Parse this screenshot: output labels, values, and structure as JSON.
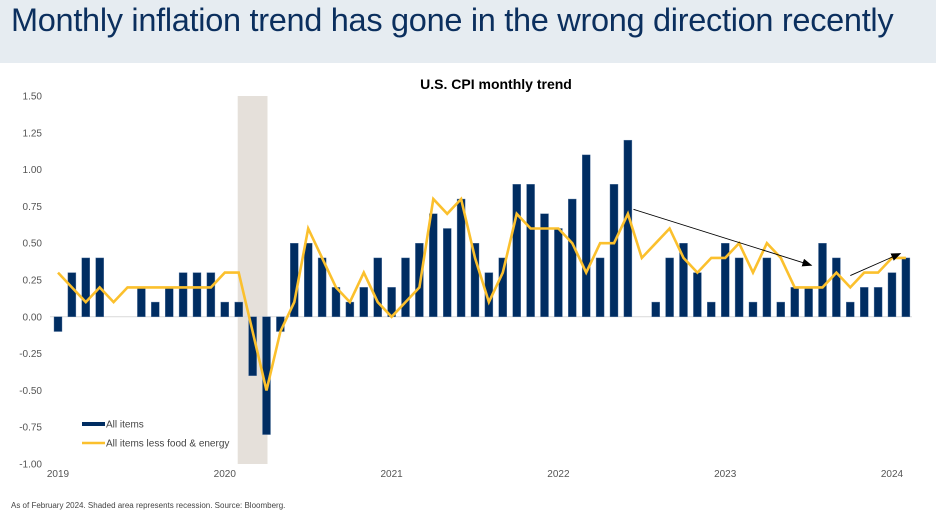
{
  "header": {
    "title": "Monthly inflation trend has gone in the wrong direction recently"
  },
  "footnote": "As of February 2024. Shaded area represents recession. Source: Bloomberg.",
  "colors": {
    "header_bg": "#e6ecf1",
    "title": "#0b2f5e",
    "all_items": "#002d62",
    "core": "#fbc02d",
    "recession": "#e5e0da",
    "arrow": "#000000"
  },
  "chart_data": {
    "type": "bar+line",
    "title": "U.S. CPI monthly trend",
    "xlabel": "",
    "ylabel": "",
    "ylim": [
      -1.0,
      1.5
    ],
    "yticks": [
      -1.0,
      -0.75,
      -0.5,
      -0.25,
      0.0,
      0.25,
      0.5,
      0.75,
      1.0,
      1.25,
      1.5
    ],
    "ytick_labels": [
      "-1.00",
      "-0.75",
      "-0.50",
      "-0.25",
      "0.00",
      "0.25",
      "0.50",
      "0.75",
      "1.00",
      "1.25",
      "1.50"
    ],
    "grid": false,
    "x_start": "Jan 2019",
    "x_end": "Feb 2024",
    "xtick_labels": [
      {
        "label": "2019",
        "month_index": 0
      },
      {
        "label": "2020",
        "month_index": 12
      },
      {
        "label": "2021",
        "month_index": 24
      },
      {
        "label": "2022",
        "month_index": 36
      },
      {
        "label": "2023",
        "month_index": 48
      },
      {
        "label": "2024",
        "month_index": 60
      }
    ],
    "legend_position": "bottom-left",
    "series": [
      {
        "name": "All items",
        "type": "bar",
        "values": [
          -0.1,
          0.3,
          0.4,
          0.4,
          0.0,
          0.0,
          0.2,
          0.1,
          0.2,
          0.3,
          0.3,
          0.3,
          0.1,
          0.1,
          -0.4,
          -0.8,
          -0.1,
          0.5,
          0.5,
          0.4,
          0.2,
          0.1,
          0.2,
          0.4,
          0.2,
          0.4,
          0.5,
          0.7,
          0.6,
          0.8,
          0.5,
          0.3,
          0.4,
          0.9,
          0.9,
          0.7,
          0.6,
          0.8,
          1.1,
          0.4,
          0.9,
          1.2,
          0.0,
          0.1,
          0.4,
          0.5,
          0.3,
          0.1,
          0.5,
          0.4,
          0.1,
          0.4,
          0.1,
          0.2,
          0.2,
          0.5,
          0.4,
          0.1,
          0.2,
          0.2,
          0.3,
          0.4
        ]
      },
      {
        "name": "All items less food & energy",
        "type": "line",
        "values": [
          0.3,
          0.2,
          0.1,
          0.2,
          0.1,
          0.2,
          0.2,
          0.2,
          0.2,
          0.2,
          0.2,
          0.2,
          0.3,
          0.3,
          -0.1,
          -0.5,
          -0.1,
          0.1,
          0.6,
          0.4,
          0.2,
          0.1,
          0.3,
          0.1,
          0.0,
          0.1,
          0.2,
          0.8,
          0.7,
          0.8,
          0.4,
          0.1,
          0.3,
          0.7,
          0.6,
          0.6,
          0.6,
          0.5,
          0.3,
          0.5,
          0.5,
          0.7,
          0.4,
          0.5,
          0.6,
          0.4,
          0.3,
          0.4,
          0.4,
          0.5,
          0.3,
          0.5,
          0.4,
          0.2,
          0.2,
          0.2,
          0.3,
          0.2,
          0.3,
          0.3,
          0.4,
          0.4
        ]
      }
    ],
    "recession": {
      "start": "Feb 2020",
      "end": "Apr 2020",
      "start_index": 13,
      "end_index": 15
    },
    "annotations": [
      {
        "type": "arrow",
        "label": "downtrend-arrow",
        "from": {
          "month_index": 41.4,
          "value": 0.73
        },
        "to": {
          "month_index": 54.2,
          "value": 0.35
        }
      },
      {
        "type": "arrow",
        "label": "uptrend-arrow",
        "from": {
          "month_index": 57.0,
          "value": 0.28
        },
        "to": {
          "month_index": 60.6,
          "value": 0.43
        }
      }
    ]
  }
}
